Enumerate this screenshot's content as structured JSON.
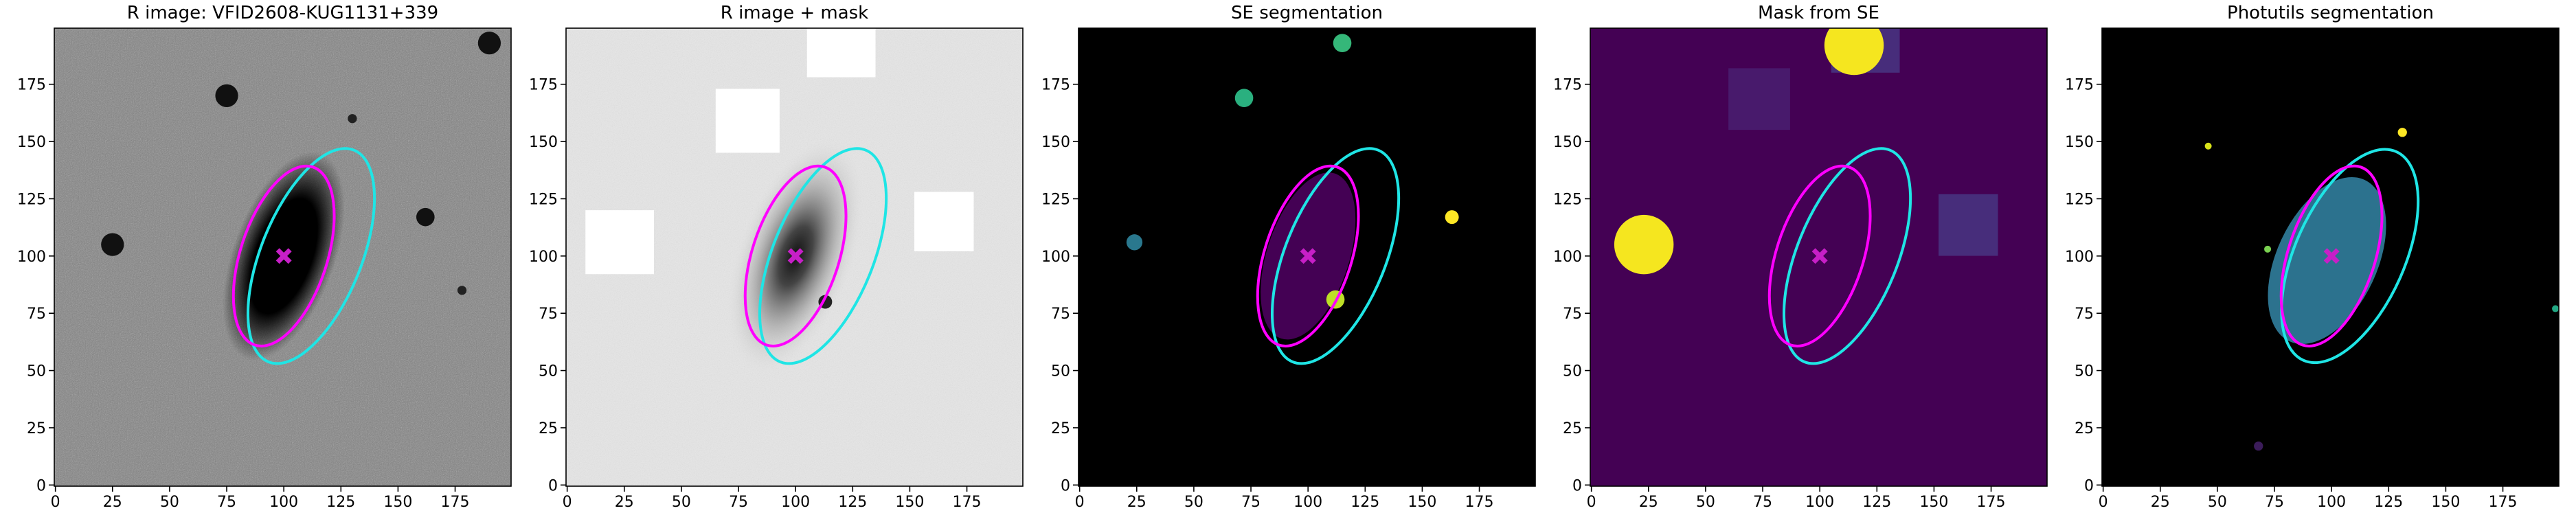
{
  "chart_data": [
    {
      "type": "image",
      "title": "R image: VFID2608-KUG1131+339",
      "background": "#808080",
      "noise": true,
      "xlim": [
        -0.5,
        199.5
      ],
      "ylim": [
        -0.5,
        199.5
      ],
      "xticks": [
        0,
        25,
        50,
        75,
        100,
        125,
        150,
        175
      ],
      "yticks": [
        0,
        25,
        50,
        75,
        100,
        125,
        150,
        175
      ],
      "ellipses": [
        {
          "color": "#1fe5e5",
          "cx": 112,
          "cy": 100,
          "a": 50,
          "b": 22,
          "angle": 68
        },
        {
          "color": "#ff00ff",
          "cx": 100,
          "cy": 100,
          "a": 41,
          "b": 19,
          "angle": 72
        }
      ],
      "marker": {
        "x": 100,
        "y": 100,
        "color": "#c71fc7"
      }
    },
    {
      "type": "image",
      "title": "R image + mask",
      "background": "#e6e6e6",
      "noise": true,
      "xlim": [
        -0.5,
        199.5
      ],
      "ylim": [
        -0.5,
        199.5
      ],
      "xticks": [
        0,
        25,
        50,
        75,
        100,
        125,
        150,
        175
      ],
      "yticks": [
        0,
        25,
        50,
        75,
        100,
        125,
        150,
        175
      ],
      "ellipses": [
        {
          "color": "#1fe5e5",
          "cx": 112,
          "cy": 100,
          "a": 50,
          "b": 22,
          "angle": 68
        },
        {
          "color": "#ff00ff",
          "cx": 100,
          "cy": 100,
          "a": 41,
          "b": 19,
          "angle": 72
        }
      ],
      "marker": {
        "x": 100,
        "y": 100,
        "color": "#c71fc7"
      }
    },
    {
      "type": "image",
      "title": "SE segmentation",
      "background": "#000000",
      "noise": false,
      "xlim": [
        -0.5,
        199.5
      ],
      "ylim": [
        -0.5,
        199.5
      ],
      "xticks": [
        0,
        25,
        50,
        75,
        100,
        125,
        150,
        175
      ],
      "yticks": [
        0,
        25,
        50,
        75,
        100,
        125,
        150,
        175
      ],
      "ellipses": [
        {
          "color": "#1fe5e5",
          "cx": 112,
          "cy": 100,
          "a": 50,
          "b": 22,
          "angle": 68
        },
        {
          "color": "#ff00ff",
          "cx": 100,
          "cy": 100,
          "a": 41,
          "b": 19,
          "angle": 72
        }
      ],
      "marker": {
        "x": 100,
        "y": 100,
        "color": "#c71fc7"
      }
    },
    {
      "type": "image",
      "title": "Mask from SE",
      "background": "#440154",
      "noise": false,
      "xlim": [
        -0.5,
        199.5
      ],
      "ylim": [
        -0.5,
        199.5
      ],
      "xticks": [
        0,
        25,
        50,
        75,
        100,
        125,
        150,
        175
      ],
      "yticks": [
        0,
        25,
        50,
        75,
        100,
        125,
        150,
        175
      ],
      "ellipses": [
        {
          "color": "#1fe5e5",
          "cx": 112,
          "cy": 100,
          "a": 50,
          "b": 22,
          "angle": 68
        },
        {
          "color": "#ff00ff",
          "cx": 100,
          "cy": 100,
          "a": 41,
          "b": 19,
          "angle": 72
        }
      ],
      "marker": {
        "x": 100,
        "y": 100,
        "color": "#c71fc7"
      }
    },
    {
      "type": "image",
      "title": "Photutils segmentation",
      "background": "#000000",
      "noise": false,
      "xlim": [
        -0.5,
        199.5
      ],
      "ylim": [
        -0.5,
        199.5
      ],
      "xticks": [
        0,
        25,
        50,
        75,
        100,
        125,
        150,
        175
      ],
      "yticks": [
        0,
        25,
        50,
        75,
        100,
        125,
        150,
        175
      ],
      "ellipses": [
        {
          "color": "#1fe5e5",
          "cx": 108,
          "cy": 100,
          "a": 50,
          "b": 24,
          "angle": 66
        },
        {
          "color": "#ff00ff",
          "cx": 100,
          "cy": 100,
          "a": 41,
          "b": 19,
          "angle": 72
        }
      ],
      "marker": {
        "x": 100,
        "y": 100,
        "color": "#c71fc7"
      }
    }
  ]
}
